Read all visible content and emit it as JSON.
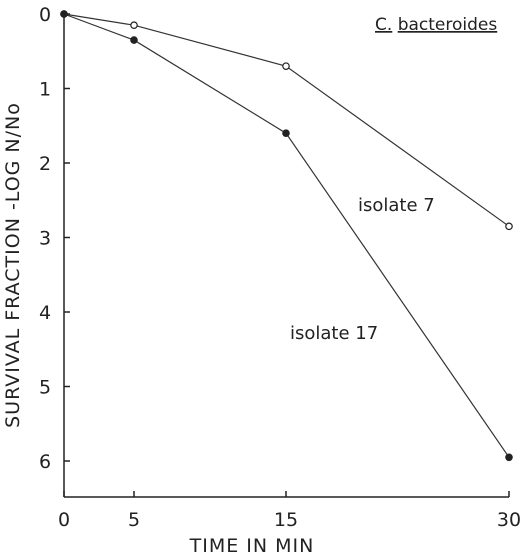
{
  "chart_data": {
    "type": "line",
    "title": "C. bacteroides",
    "title_parts": [
      "C.",
      "bacteroides"
    ],
    "xlabel": "TIME IN MIN",
    "ylabel": "SURVIVAL FRACTION -LOG N/No",
    "x_ticks": [
      "0",
      "5",
      "15",
      "30"
    ],
    "x_tick_values": [
      0,
      5,
      15,
      30
    ],
    "y_ticks": [
      "0",
      "1",
      "2",
      "3",
      "4",
      "5",
      "6"
    ],
    "y_tick_values": [
      0,
      1,
      2,
      3,
      4,
      5,
      6
    ],
    "xlim": [
      0,
      30
    ],
    "ylim": [
      0,
      6
    ],
    "y_inverted": true,
    "x_scale": "nonlinear-as-drawn",
    "grid": false,
    "legend": "none",
    "series": [
      {
        "name": "isolate 7",
        "marker": "open-circle",
        "x": [
          0,
          5,
          15,
          30
        ],
        "y": [
          0,
          0.15,
          0.7,
          2.85
        ]
      },
      {
        "name": "isolate 17",
        "marker": "filled-circle",
        "x": [
          0,
          5,
          15,
          30
        ],
        "y": [
          0,
          0.35,
          1.6,
          5.95
        ]
      }
    ]
  }
}
